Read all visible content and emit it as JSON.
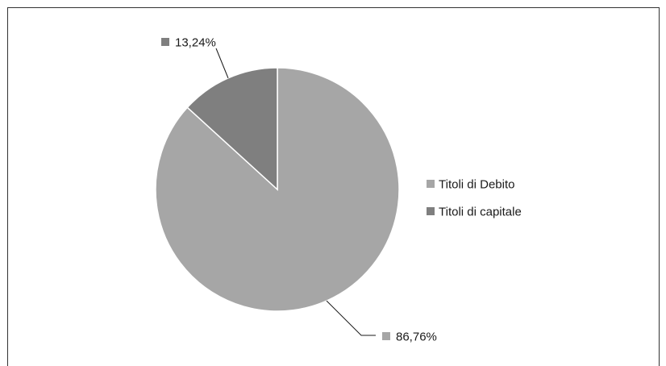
{
  "chart_data": {
    "type": "pie",
    "title": "",
    "series": [
      {
        "name": "Titoli di Debito",
        "value": 86.76,
        "label": "86,76%",
        "color": "#a6a6a6"
      },
      {
        "name": "Titoli di capitale",
        "value": 13.24,
        "label": "13,24%",
        "color": "#7f7f7f"
      }
    ],
    "start_angle_deg": 0,
    "direction": "clockwise",
    "legend": {
      "placement": "right"
    },
    "label_style": "outside-with-leader-lines"
  }
}
